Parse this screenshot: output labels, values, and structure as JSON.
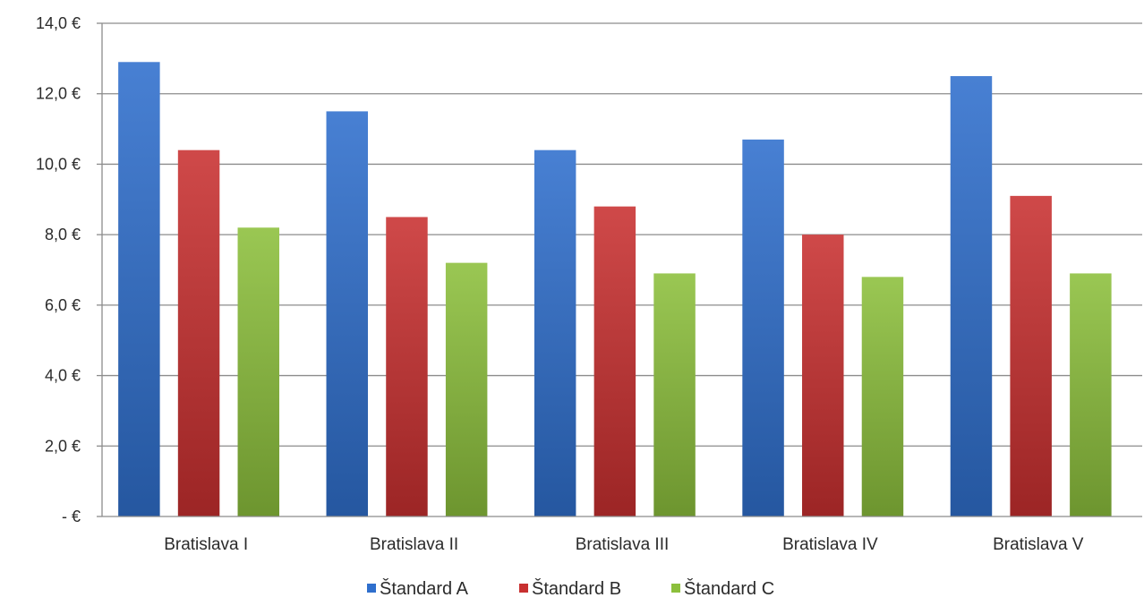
{
  "chart_data": {
    "type": "bar",
    "title": "",
    "xlabel": "",
    "ylabel": "",
    "categories": [
      "Bratislava I",
      "Bratislava II",
      "Bratislava III",
      "Bratislava IV",
      "Bratislava V"
    ],
    "series": [
      {
        "name": "Štandard A",
        "values": [
          12.9,
          11.5,
          10.4,
          10.7,
          12.5
        ],
        "color": "#2f6fcd"
      },
      {
        "name": "Štandard B",
        "values": [
          10.4,
          8.5,
          8.8,
          8.0,
          9.1
        ],
        "color": "#c83030"
      },
      {
        "name": "Štandard C",
        "values": [
          8.2,
          7.2,
          6.9,
          6.8,
          6.9
        ],
        "color": "#8cbf3c"
      }
    ],
    "ylim": [
      0,
      14
    ],
    "yticks": [
      0,
      2,
      4,
      6,
      8,
      10,
      12,
      14
    ],
    "ytick_labels": [
      "-  €",
      "2,0 €",
      "4,0 €",
      "6,0 €",
      "8,0 €",
      "10,0 €",
      "12,0 €",
      "14,0 €"
    ],
    "grid": true,
    "legend_position": "bottom"
  }
}
